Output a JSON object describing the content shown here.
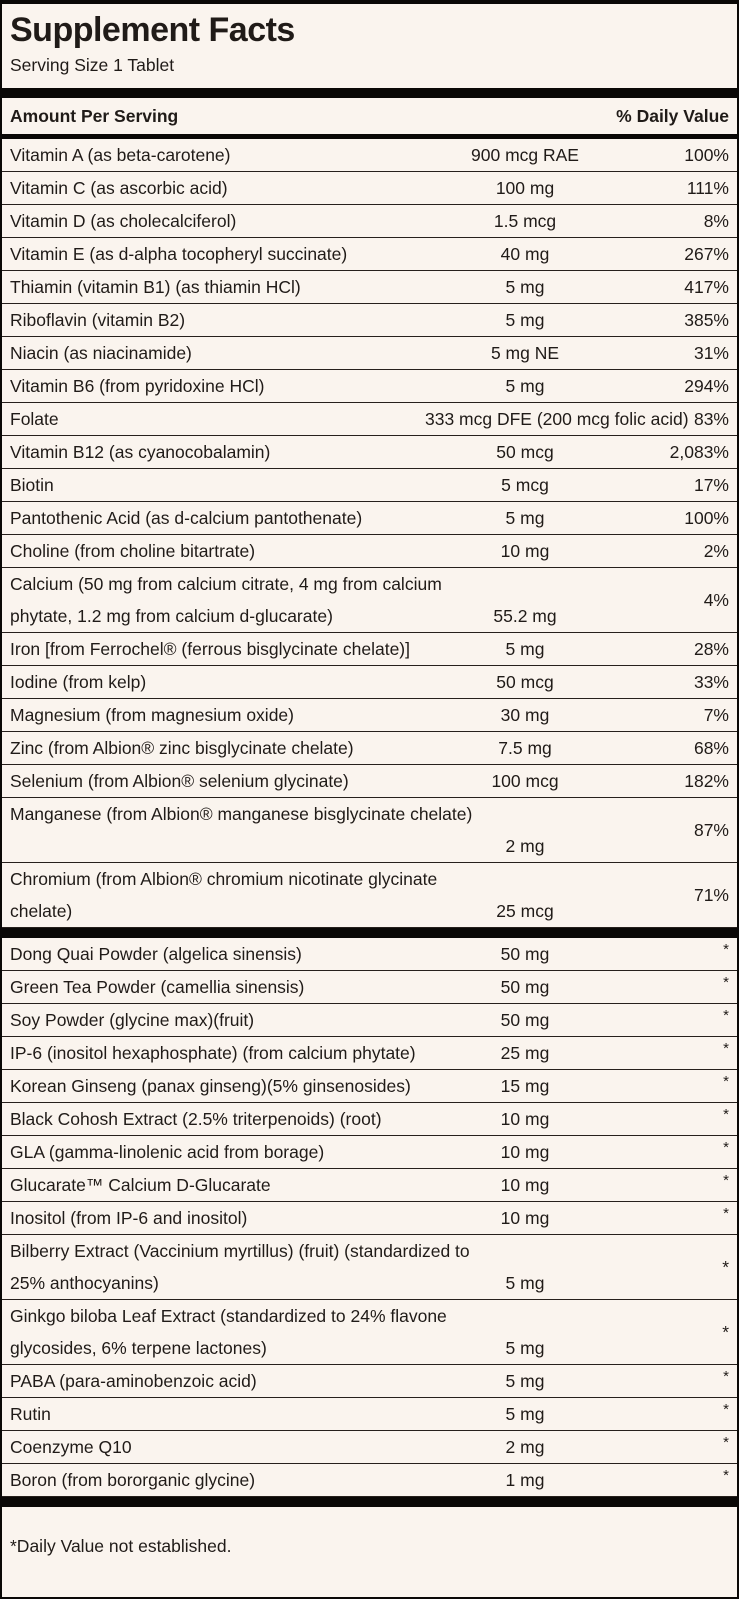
{
  "label": {
    "title": "Supplement Facts",
    "serving_size": "Serving Size 1 Tablet",
    "header": {
      "amount_col": "Amount Per Serving",
      "daily_value_col": "% Daily Value"
    },
    "footnote": "*Daily Value not established.",
    "colors": {
      "background": "#faf4ee",
      "text": "#201b18",
      "rule": "#26201c",
      "bar": "#0a0806"
    },
    "sections": [
      {
        "rows": [
          {
            "name": "Vitamin A (as beta-carotene)",
            "amount": "900 mcg RAE",
            "dv": "100%"
          },
          {
            "name": "Vitamin C (as ascorbic acid)",
            "amount": "100 mg",
            "dv": "111%"
          },
          {
            "name": "Vitamin D (as cholecalciferol)",
            "amount": "1.5 mcg",
            "dv": "8%"
          },
          {
            "name": "Vitamin E (as d-alpha tocopheryl succinate)",
            "amount": "40 mg",
            "dv": "267%"
          },
          {
            "name": "Thiamin (vitamin B1) (as thiamin HCl)",
            "amount": "5 mg",
            "dv": "417%"
          },
          {
            "name": "Riboflavin (vitamin B2)",
            "amount": "5 mg",
            "dv": "385%"
          },
          {
            "name": "Niacin (as niacinamide)",
            "amount": "5 mg NE",
            "dv": "31%"
          },
          {
            "name": "Vitamin B6 (from pyridoxine HCl)",
            "amount": "5 mg",
            "dv": "294%"
          },
          {
            "name": "Folate",
            "amount": "333 mcg DFE (200 mcg folic acid)",
            "dv": "83%"
          },
          {
            "name": "Vitamin B12 (as cyanocobalamin)",
            "amount": "50 mcg",
            "dv": "2,083%"
          },
          {
            "name": "Biotin",
            "amount": "5 mcg",
            "dv": "17%"
          },
          {
            "name": "Pantothenic Acid (as d-calcium pantothenate)",
            "amount": "5 mg",
            "dv": "100%"
          },
          {
            "name": "Choline (from choline bitartrate)",
            "amount": "10 mg",
            "dv": "2%"
          },
          {
            "lines": [
              "Calcium (50 mg from calcium citrate, 4 mg from calcium",
              "phytate, 1.2 mg from calcium d-glucarate)"
            ],
            "amount": "55.2 mg",
            "dv": "4%"
          },
          {
            "name": "Iron [from Ferrochel® (ferrous bisglycinate chelate)]",
            "amount": "5 mg",
            "dv": "28%"
          },
          {
            "name": "Iodine (from kelp)",
            "amount": "50 mcg",
            "dv": "33%"
          },
          {
            "name": "Magnesium (from magnesium oxide)",
            "amount": "30 mg",
            "dv": "7%"
          },
          {
            "name": "Zinc (from Albion® zinc bisglycinate chelate)",
            "amount": "7.5 mg",
            "dv": "68%"
          },
          {
            "name": "Selenium (from Albion® selenium glycinate)",
            "amount": "100 mcg",
            "dv": "182%"
          },
          {
            "lines": [
              "Manganese (from Albion® manganese bisglycinate chelate)",
              ""
            ],
            "amount": "2 mg",
            "dv": "87%"
          },
          {
            "lines": [
              "Chromium (from Albion® chromium nicotinate glycinate",
              "chelate)"
            ],
            "amount": "25 mcg",
            "dv": "71%"
          }
        ]
      },
      {
        "rows": [
          {
            "name": "Dong Quai Powder (algelica sinensis)",
            "amount": "50 mg",
            "dv": "*"
          },
          {
            "name": "Green Tea Powder (camellia sinensis)",
            "amount": "50 mg",
            "dv": "*"
          },
          {
            "name": "Soy Powder (glycine max)(fruit)",
            "amount": "50 mg",
            "dv": "*"
          },
          {
            "name": "IP-6 (inositol hexaphosphate) (from calcium phytate)",
            "amount": "25 mg",
            "dv": "*"
          },
          {
            "name": "Korean Ginseng (panax ginseng)(5% ginsenosides)",
            "amount": "15 mg",
            "dv": "*"
          },
          {
            "name": "Black Cohosh Extract (2.5% triterpenoids) (root)",
            "amount": "10 mg",
            "dv": "*"
          },
          {
            "name": "GLA (gamma-linolenic acid from borage)",
            "amount": "10 mg",
            "dv": "*"
          },
          {
            "name": "Glucarate™ Calcium D-Glucarate",
            "amount": "10 mg",
            "dv": "*"
          },
          {
            "name": "Inositol (from IP-6 and inositol)",
            "amount": "10 mg",
            "dv": "*"
          },
          {
            "lines": [
              "Bilberry Extract (Vaccinium myrtillus) (fruit) (standardized to",
              "25% anthocyanins)"
            ],
            "amount": "5 mg",
            "dv": "*"
          },
          {
            "lines": [
              "Ginkgo biloba Leaf Extract (standardized to 24% flavone",
              "glycosides, 6% terpene lactones)"
            ],
            "amount": "5 mg",
            "dv": "*"
          },
          {
            "name": "PABA (para-aminobenzoic acid)",
            "amount": "5 mg",
            "dv": "*"
          },
          {
            "name": "Rutin",
            "amount": "5 mg",
            "dv": "*"
          },
          {
            "name": "Coenzyme Q10",
            "amount": "2 mg",
            "dv": "*"
          },
          {
            "name": "Boron (from bororganic glycine)",
            "amount": "1 mg",
            "dv": "*"
          }
        ]
      }
    ]
  }
}
